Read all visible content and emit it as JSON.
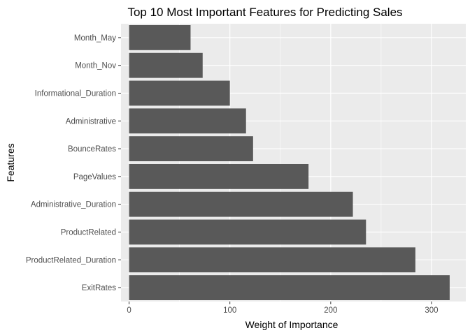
{
  "chart_data": {
    "type": "bar",
    "orientation": "horizontal",
    "title": "Top 10 Most Important Features for Predicting Sales",
    "xlabel": "Weight of Importance",
    "ylabel": "Features",
    "categories": [
      "ExitRates",
      "ProductRelated_Duration",
      "ProductRelated",
      "Administrative_Duration",
      "PageValues",
      "BounceRates",
      "Administrative",
      "Informational_Duration",
      "Month_Nov",
      "Month_May"
    ],
    "values": [
      318,
      284,
      235,
      222,
      178,
      123,
      116,
      100,
      73,
      61
    ],
    "xlim": [
      -8,
      334
    ],
    "xticks": [
      0,
      100,
      200,
      300
    ],
    "xtick_labels": [
      "0",
      "100",
      "200",
      "300"
    ],
    "grid": true,
    "colors": {
      "panel": "#ebebeb",
      "grid_major": "#ffffff",
      "bar": "#595959",
      "tick": "#333333",
      "tick_text": "#4d4d4d"
    }
  }
}
